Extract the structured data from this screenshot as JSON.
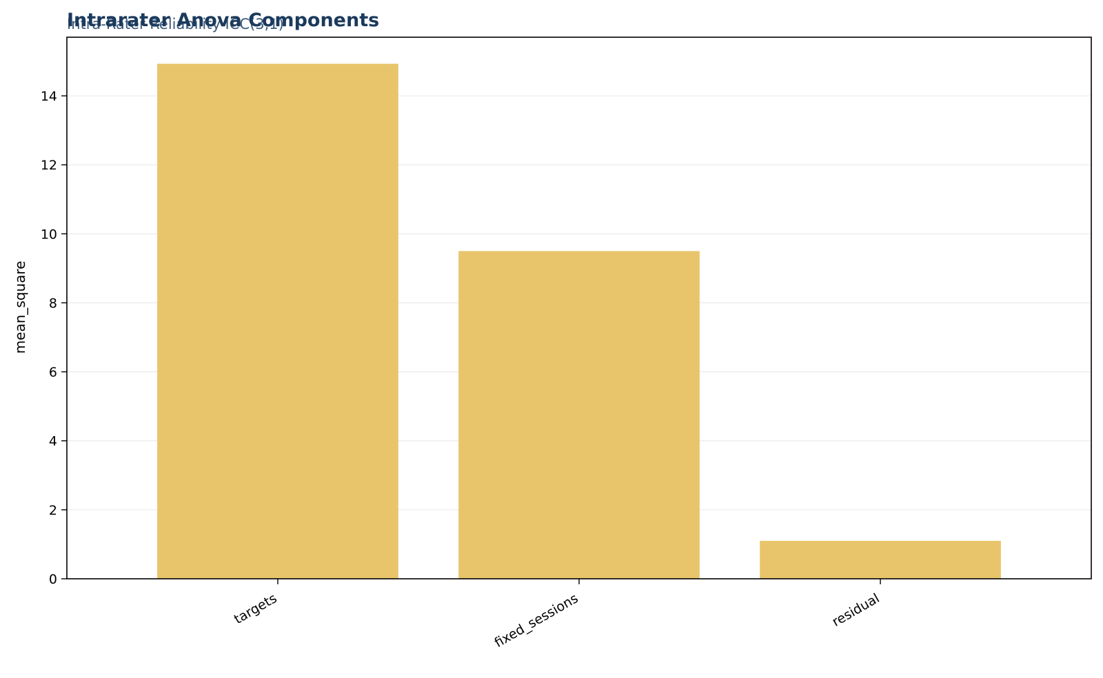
{
  "chart_data": {
    "type": "bar",
    "title": "Intrarater Anova Components",
    "subtitle": "Intra-Rater Reliability ICC(3,1)",
    "xlabel": "",
    "ylabel": "mean_square",
    "categories": [
      "targets",
      "fixed_sessions",
      "residual"
    ],
    "values": [
      14.93,
      9.5,
      1.1
    ],
    "ylim": [
      0,
      15.7
    ],
    "yticks": [
      0,
      2,
      4,
      6,
      8,
      10,
      12,
      14
    ],
    "grid": "y",
    "legend": "none"
  },
  "colors": {
    "bar": "#e8c46b",
    "title": "#1b3a5c",
    "subtitle": "#3b5a7a",
    "grid": "#e6e6e6",
    "axis": "#000000"
  }
}
